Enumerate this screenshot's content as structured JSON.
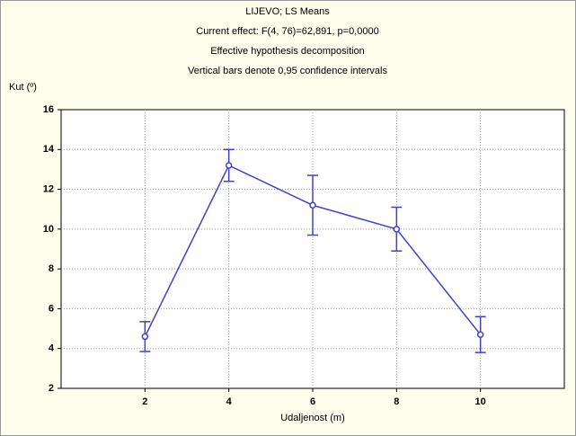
{
  "chart_data": {
    "type": "line",
    "title": "LIJEVO; LS Means",
    "subtitles": [
      "Current effect: F(4, 76)=62,891, p=0,0000",
      "Effective hypothesis decomposition",
      "Vertical bars denote 0,95 confidence intervals"
    ],
    "ylabel": "Kut (º)",
    "xlabel": "Udaljenost (m)",
    "x": [
      2,
      4,
      6,
      8,
      10
    ],
    "series": [
      {
        "color": "#4040c8",
        "values": [
          4.6,
          13.2,
          11.2,
          10.0,
          4.7
        ],
        "errors": [
          0.75,
          0.8,
          1.5,
          1.1,
          0.9
        ]
      }
    ],
    "xlim": [
      0,
      12
    ],
    "xticks": [
      2,
      4,
      6,
      8,
      10
    ],
    "ylim": [
      2,
      16
    ],
    "yticks": [
      2,
      4,
      6,
      8,
      10,
      12,
      14,
      16
    ],
    "grid": true
  }
}
